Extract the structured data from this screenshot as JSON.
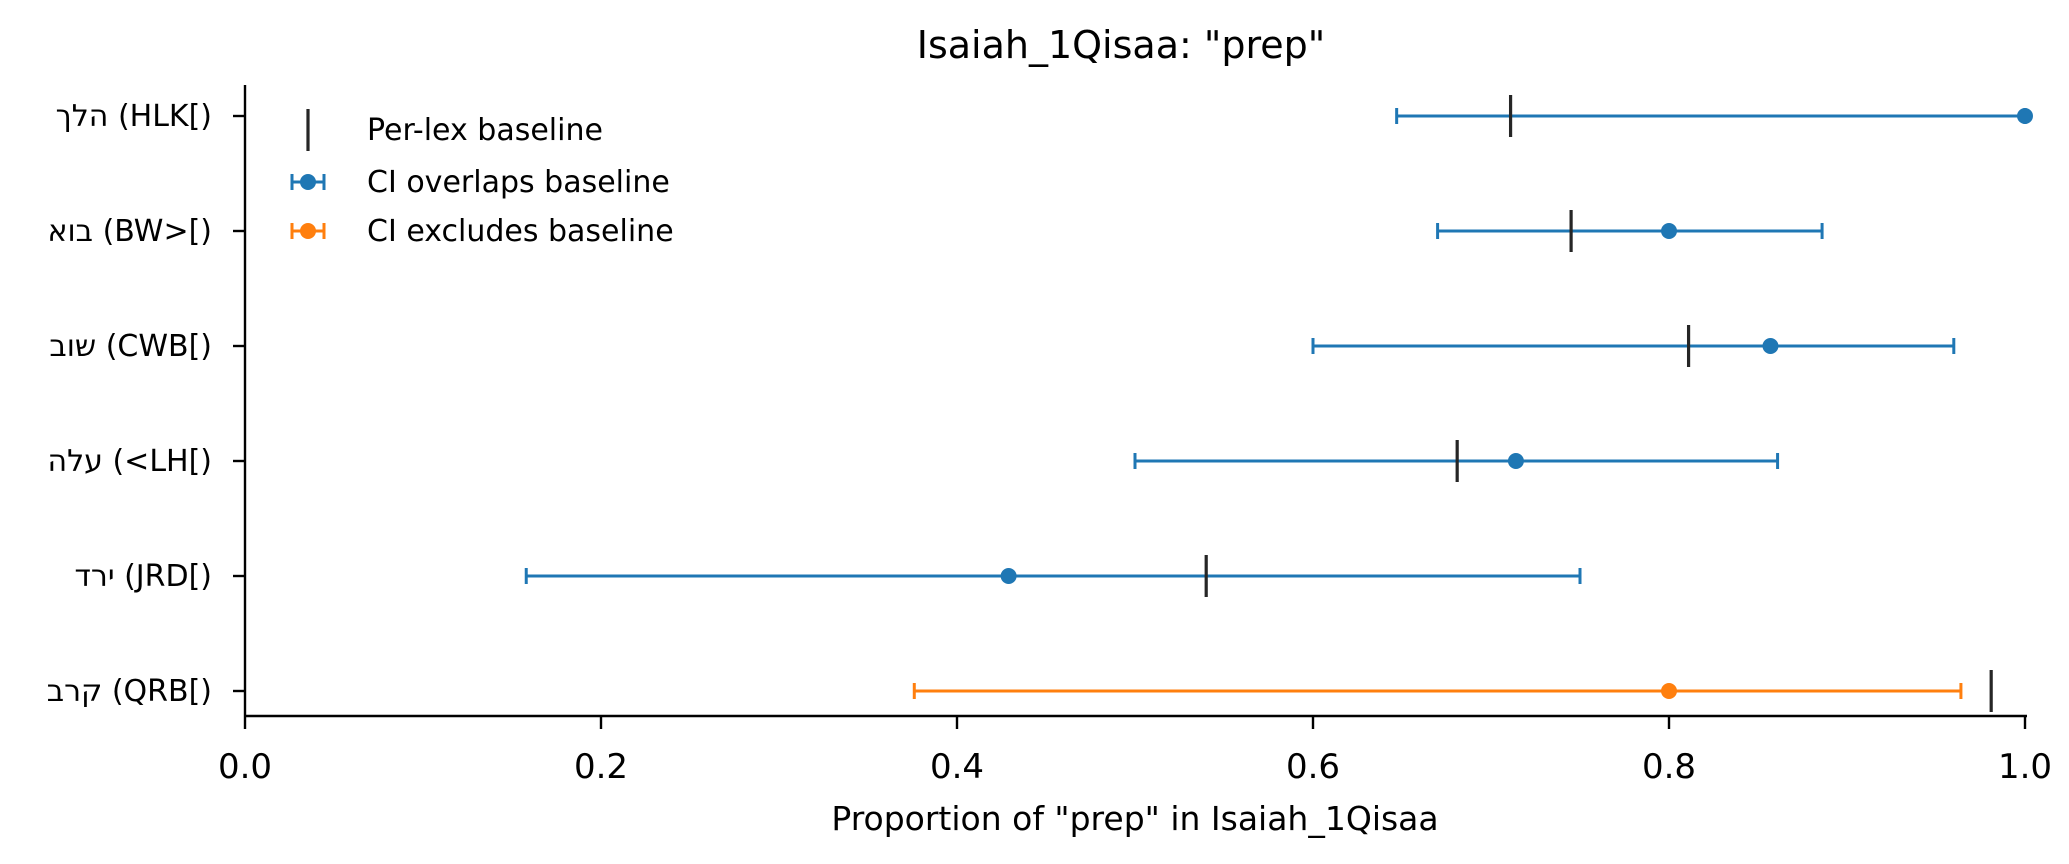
{
  "chart_data": {
    "type": "errorbar",
    "title": "Isaiah_1Qisaa: \"prep\"",
    "xlabel": "Proportion of \"prep\" in Isaiah_1Qisaa",
    "ylabel": "",
    "xlim": [
      0.0,
      1.0
    ],
    "xticks": [
      "0.0",
      "0.2",
      "0.4",
      "0.6",
      "0.8",
      "1.0"
    ],
    "grid": false,
    "legend_position": "top-left",
    "legend": [
      {
        "label": "Per-lex baseline",
        "kind": "baseline"
      },
      {
        "label": "CI overlaps baseline",
        "kind": "overlaps"
      },
      {
        "label": "CI excludes baseline",
        "kind": "excludes"
      }
    ],
    "colors": {
      "overlaps": "#1f77b4",
      "excludes": "#ff7f0e",
      "baseline": "#262626"
    },
    "categories": [
      {
        "label": "הלך (HLK[)",
        "estimate": 1.0,
        "ci_low": 0.647,
        "ci_high": 1.0,
        "baseline": 0.711,
        "status": "overlaps"
      },
      {
        "label": "בוא (BW>[)",
        "estimate": 0.8,
        "ci_low": 0.67,
        "ci_high": 0.886,
        "baseline": 0.745,
        "status": "overlaps"
      },
      {
        "label": "שוב (CWB[)",
        "estimate": 0.857,
        "ci_low": 0.6,
        "ci_high": 0.96,
        "baseline": 0.811,
        "status": "overlaps"
      },
      {
        "label": "עלה (<LH[)",
        "estimate": 0.714,
        "ci_low": 0.5,
        "ci_high": 0.861,
        "baseline": 0.681,
        "status": "overlaps"
      },
      {
        "label": "ירד (JRD[)",
        "estimate": 0.429,
        "ci_low": 0.158,
        "ci_high": 0.75,
        "baseline": 0.54,
        "status": "overlaps"
      },
      {
        "label": "קרב (QRB[)",
        "estimate": 0.8,
        "ci_low": 0.376,
        "ci_high": 0.964,
        "baseline": 0.981,
        "status": "excludes"
      }
    ]
  }
}
